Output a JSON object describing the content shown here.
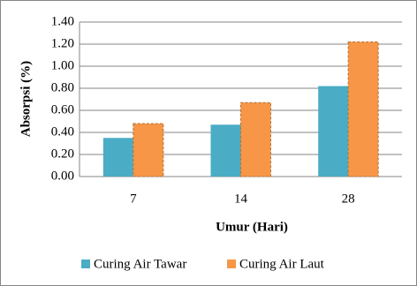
{
  "chart_data": {
    "type": "bar",
    "categories": [
      "7",
      "14",
      "28"
    ],
    "series": [
      {
        "name": "Curing Air Tawar",
        "color": "#4bacc6",
        "values": [
          0.35,
          0.47,
          0.82
        ]
      },
      {
        "name": "Curing Air Laut",
        "color": "#f79646",
        "values": [
          0.48,
          0.67,
          1.22
        ]
      }
    ],
    "x_label": "Umur (Hari)",
    "y_label": "Absorpsi (%)",
    "ylim": [
      0,
      1.4
    ],
    "yticks": [
      {
        "value": 0,
        "label": "0.00"
      },
      {
        "value": 0.2,
        "label": "0.20"
      },
      {
        "value": 0.4,
        "label": "0.40"
      },
      {
        "value": 0.6,
        "label": "0.60"
      },
      {
        "value": 0.8,
        "label": "0.80"
      },
      {
        "value": 1,
        "label": "1.00"
      },
      {
        "value": 1.2,
        "label": "1.20"
      },
      {
        "value": 1.4,
        "label": "1.40"
      }
    ],
    "grid": true,
    "legend": "bottom"
  }
}
